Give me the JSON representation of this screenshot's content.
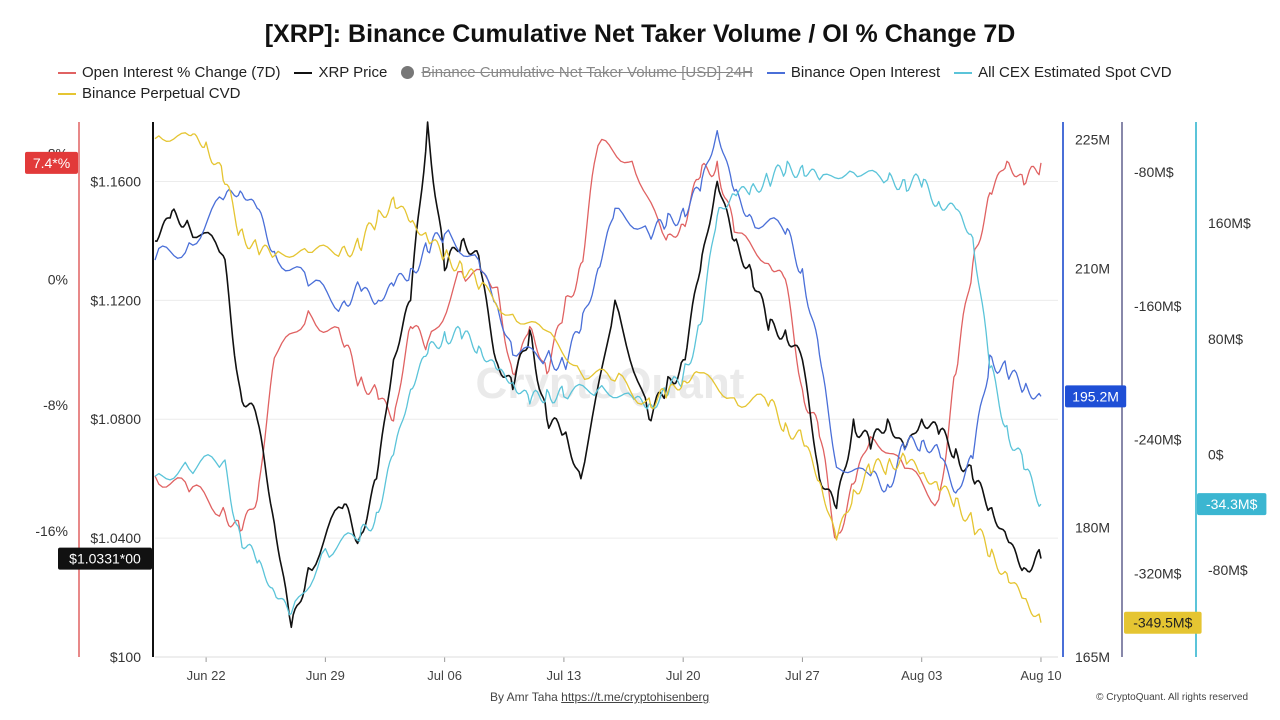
{
  "chart_data": {
    "type": "line",
    "title": "[XRP]: Binance Cumulative Net Taker Volume / OI % Change 7D",
    "watermark": "CryptoQuant",
    "x_ticks": [
      "Jun 22",
      "Jun 29",
      "Jul 06",
      "Jul 13",
      "Jul 20",
      "Jul 27",
      "Aug 03",
      "Aug 10"
    ],
    "x_range": [
      "2025-06-19",
      "2025-08-11"
    ],
    "legend_placement": "top",
    "grid": true,
    "axes": {
      "oi_change": {
        "ticks": [
          "8%",
          "0%",
          "-8%",
          "-16%"
        ],
        "range": [
          -24,
          10
        ],
        "color": "#e06262"
      },
      "price": {
        "ticks": [
          "$1.1600",
          "$1.1200",
          "$1.0800",
          "$1.0400",
          "$100"
        ],
        "range": [
          1.0,
          1.18
        ],
        "color": "#111111"
      },
      "binance_oi": {
        "ticks": [
          "225M",
          "210M",
          "180M",
          "165M"
        ],
        "range": [
          165,
          227
        ],
        "color": "#4a6fd8"
      },
      "perp_cvd": {
        "ticks": [
          "-80M$",
          "-160M$",
          "-240M$",
          "-320M$"
        ],
        "range": [
          -370,
          -50
        ],
        "color": "#8888aa"
      },
      "spot_cvd": {
        "ticks": [
          "160M$",
          "80M$",
          "0$",
          "-80M$"
        ],
        "range": [
          -140,
          230
        ],
        "color": "#5bc4d9"
      }
    },
    "badges": {
      "oi_change": "7.4*%",
      "price": "$1.0331*00",
      "binance_oi": "195.2M",
      "spot_cvd": "-34.3M$",
      "perp_cvd": "-349.5M$"
    },
    "series": [
      {
        "name": "Open Interest % Change (7D)",
        "axis": "oi_change",
        "color": "#e06262",
        "visible": true,
        "x": [
          "2025-06-19",
          "2025-06-21",
          "2025-06-23",
          "2025-06-24",
          "2025-06-25",
          "2025-06-26",
          "2025-06-28",
          "2025-06-30",
          "2025-07-01",
          "2025-07-02",
          "2025-07-03",
          "2025-07-04",
          "2025-07-05",
          "2025-07-07",
          "2025-07-09",
          "2025-07-10",
          "2025-07-11",
          "2025-07-12",
          "2025-07-13",
          "2025-07-14",
          "2025-07-15",
          "2025-07-17",
          "2025-07-19",
          "2025-07-20",
          "2025-07-21",
          "2025-07-22",
          "2025-07-23",
          "2025-07-25",
          "2025-07-26",
          "2025-07-27",
          "2025-07-28",
          "2025-07-29",
          "2025-07-30",
          "2025-07-31",
          "2025-08-02",
          "2025-08-04",
          "2025-08-05",
          "2025-08-06",
          "2025-08-07",
          "2025-08-08",
          "2025-08-09",
          "2025-08-10"
        ],
        "values": [
          -12.5,
          -13.5,
          -14.5,
          -16,
          -14,
          -5,
          -2,
          -4,
          -6.5,
          -7,
          -9,
          -3,
          -4,
          0.5,
          -0.5,
          -6,
          -3,
          -6,
          -2,
          1,
          8.5,
          7.5,
          2.5,
          3.5,
          6.5,
          7.5,
          3,
          1,
          0,
          -7,
          -10,
          -16.5,
          -13,
          -10,
          -12,
          -14,
          -6,
          1,
          5.5,
          7.5,
          6,
          7.4
        ]
      },
      {
        "name": "XRP Price",
        "axis": "price",
        "color": "#111111",
        "visible": true,
        "x": [
          "2025-06-19",
          "2025-06-20",
          "2025-06-21",
          "2025-06-23",
          "2025-06-24",
          "2025-06-25",
          "2025-06-26",
          "2025-06-27",
          "2025-06-28",
          "2025-06-30",
          "2025-07-01",
          "2025-07-02",
          "2025-07-03",
          "2025-07-04",
          "2025-07-05",
          "2025-07-06",
          "2025-07-07",
          "2025-07-08",
          "2025-07-09",
          "2025-07-10",
          "2025-07-11",
          "2025-07-12",
          "2025-07-13",
          "2025-07-14",
          "2025-07-16",
          "2025-07-18",
          "2025-07-19",
          "2025-07-20",
          "2025-07-21",
          "2025-07-22",
          "2025-07-23",
          "2025-07-24",
          "2025-07-25",
          "2025-07-26",
          "2025-07-27",
          "2025-07-28",
          "2025-07-29",
          "2025-07-30",
          "2025-07-31",
          "2025-08-01",
          "2025-08-02",
          "2025-08-03",
          "2025-08-04",
          "2025-08-05",
          "2025-08-06",
          "2025-08-07",
          "2025-08-08",
          "2025-08-09",
          "2025-08-10"
        ],
        "values": [
          1.14,
          1.15,
          1.145,
          1.135,
          1.09,
          1.08,
          1.045,
          1.01,
          1.03,
          1.05,
          1.04,
          1.06,
          1.1,
          1.12,
          1.18,
          1.13,
          1.14,
          1.135,
          1.1,
          1.09,
          1.11,
          1.08,
          1.075,
          1.06,
          1.12,
          1.08,
          1.09,
          1.1,
          1.13,
          1.16,
          1.14,
          1.13,
          1.11,
          1.11,
          1.1,
          1.06,
          1.05,
          1.08,
          1.07,
          1.08,
          1.07,
          1.08,
          1.075,
          1.07,
          1.06,
          1.05,
          1.04,
          1.03,
          1.0331
        ]
      },
      {
        "name": "Binance Cumulative Net Taker Volume [USD] 24H",
        "axis": "price",
        "color": "#777777",
        "visible": false,
        "x": [],
        "values": []
      },
      {
        "name": "Binance Open Interest",
        "axis": "binance_oi",
        "color": "#4a6fd8",
        "visible": true,
        "x": [
          "2025-06-19",
          "2025-06-21",
          "2025-06-23",
          "2025-06-24",
          "2025-06-25",
          "2025-06-26",
          "2025-06-28",
          "2025-06-30",
          "2025-07-01",
          "2025-07-02",
          "2025-07-03",
          "2025-07-04",
          "2025-07-05",
          "2025-07-06",
          "2025-07-08",
          "2025-07-09",
          "2025-07-10",
          "2025-07-12",
          "2025-07-13",
          "2025-07-14",
          "2025-07-15",
          "2025-07-16",
          "2025-07-18",
          "2025-07-19",
          "2025-07-20",
          "2025-07-21",
          "2025-07-22",
          "2025-07-23",
          "2025-07-24",
          "2025-07-26",
          "2025-07-27",
          "2025-07-28",
          "2025-07-29",
          "2025-07-31",
          "2025-08-01",
          "2025-08-02",
          "2025-08-03",
          "2025-08-04",
          "2025-08-05",
          "2025-08-06",
          "2025-08-07",
          "2025-08-08",
          "2025-08-09",
          "2025-08-10"
        ],
        "values": [
          211,
          213,
          218,
          219,
          217,
          212,
          208,
          206,
          208,
          206,
          208,
          210,
          212,
          214,
          211,
          206,
          200,
          200,
          199,
          203,
          210,
          217,
          214,
          215,
          217,
          219,
          226,
          219,
          216,
          214,
          210,
          200,
          187,
          186,
          185,
          189,
          190,
          189,
          184,
          188,
          200,
          198,
          196,
          195.2
        ]
      },
      {
        "name": "All CEX Estimated Spot CVD",
        "axis": "spot_cvd",
        "color": "#5bc4d9",
        "visible": true,
        "x": [
          "2025-06-19",
          "2025-06-21",
          "2025-06-23",
          "2025-06-24",
          "2025-06-25",
          "2025-06-26",
          "2025-06-27",
          "2025-06-29",
          "2025-07-01",
          "2025-07-02",
          "2025-07-03",
          "2025-07-04",
          "2025-07-05",
          "2025-07-06",
          "2025-07-07",
          "2025-07-08",
          "2025-07-09",
          "2025-07-10",
          "2025-07-11",
          "2025-07-12",
          "2025-07-13",
          "2025-07-15",
          "2025-07-17",
          "2025-07-18",
          "2025-07-19",
          "2025-07-20",
          "2025-07-21",
          "2025-07-22",
          "2025-07-23",
          "2025-07-24",
          "2025-07-25",
          "2025-07-26",
          "2025-07-27",
          "2025-07-28",
          "2025-07-30",
          "2025-08-01",
          "2025-08-02",
          "2025-08-03",
          "2025-08-04",
          "2025-08-05",
          "2025-08-06",
          "2025-08-07",
          "2025-08-08",
          "2025-08-09",
          "2025-08-10"
        ],
        "values": [
          -15,
          -10,
          -5,
          -55,
          -75,
          -95,
          -110,
          -65,
          -60,
          -40,
          0,
          45,
          70,
          85,
          80,
          75,
          60,
          50,
          35,
          45,
          40,
          45,
          40,
          35,
          40,
          55,
          90,
          165,
          180,
          185,
          190,
          195,
          200,
          190,
          195,
          190,
          190,
          185,
          175,
          170,
          150,
          60,
          20,
          -10,
          -34.3
        ]
      },
      {
        "name": "Binance Perpetual CVD",
        "axis": "perp_cvd",
        "color": "#e5c532",
        "visible": true,
        "x": [
          "2025-06-19",
          "2025-06-21",
          "2025-06-22",
          "2025-06-23",
          "2025-06-24",
          "2025-06-25",
          "2025-06-26",
          "2025-06-28",
          "2025-06-30",
          "2025-07-01",
          "2025-07-02",
          "2025-07-03",
          "2025-07-04",
          "2025-07-05",
          "2025-07-06",
          "2025-07-07",
          "2025-07-08",
          "2025-07-10",
          "2025-07-12",
          "2025-07-14",
          "2025-07-16",
          "2025-07-18",
          "2025-07-19",
          "2025-07-20",
          "2025-07-21",
          "2025-07-23",
          "2025-07-25",
          "2025-07-26",
          "2025-07-27",
          "2025-07-28",
          "2025-07-29",
          "2025-07-30",
          "2025-07-31",
          "2025-08-01",
          "2025-08-02",
          "2025-08-03",
          "2025-08-04",
          "2025-08-05",
          "2025-08-06",
          "2025-08-07",
          "2025-08-08",
          "2025-08-09",
          "2025-08-10"
        ],
        "values": [
          -60,
          -58,
          -62,
          -85,
          -115,
          -125,
          -130,
          -128,
          -125,
          -125,
          -110,
          -95,
          -110,
          -120,
          -130,
          -135,
          -150,
          -165,
          -175,
          -200,
          -205,
          -215,
          -215,
          -205,
          -200,
          -215,
          -220,
          -230,
          -240,
          -265,
          -300,
          -270,
          -260,
          -255,
          -250,
          -260,
          -270,
          -275,
          -290,
          -310,
          -320,
          -335,
          -349.5
        ]
      }
    ]
  },
  "legend": [
    {
      "label": "Open Interest % Change (7D)",
      "color": "#e06262",
      "kind": "line",
      "visible": true
    },
    {
      "label": "XRP Price",
      "color": "#111111",
      "kind": "line",
      "visible": true
    },
    {
      "label": "Binance Cumulative Net Taker Volume [USD] 24H",
      "color": "#777777",
      "kind": "dot",
      "visible": false
    },
    {
      "label": "Binance Open Interest",
      "color": "#4a6fd8",
      "kind": "line",
      "visible": true
    },
    {
      "label": "All CEX Estimated Spot CVD",
      "color": "#5bc4d9",
      "kind": "line",
      "visible": true
    },
    {
      "label": "Binance Perpetual CVD",
      "color": "#e5c532",
      "kind": "line",
      "visible": true
    }
  ],
  "footer": {
    "author_prefix": "By Amr Taha",
    "author_link": "https://t.me/cryptohisenberg",
    "copyright": "© CryptoQuant. All rights reserved"
  }
}
